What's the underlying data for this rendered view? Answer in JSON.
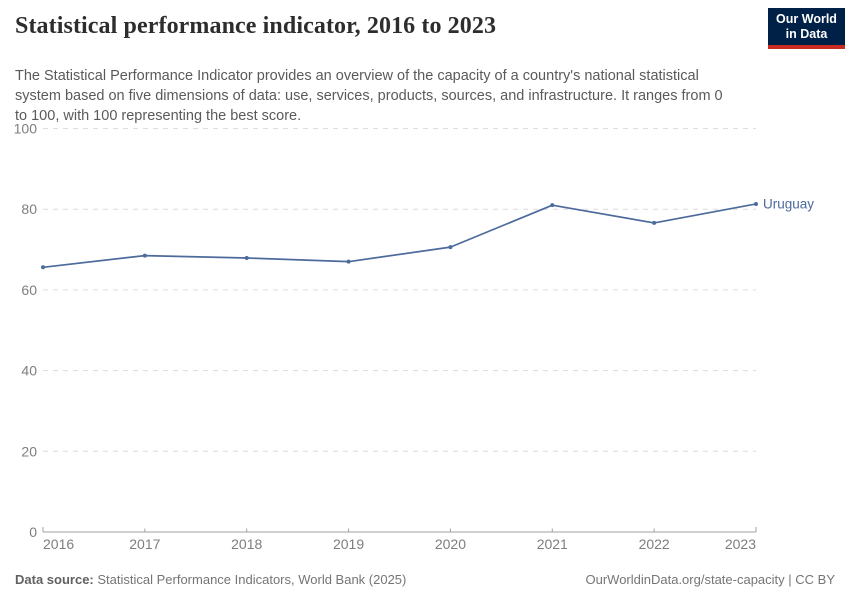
{
  "header": {
    "title": "Statistical performance indicator, 2016 to 2023",
    "subtitle": "The Statistical Performance Indicator provides an overview of the capacity of a country's national statistical system based on five dimensions of data: use, services, products, sources, and infrastructure. It ranges from 0 to 100, with 100 representing the best score.",
    "logo": {
      "line1": "Our World",
      "line2": "in Data",
      "bg_color": "#002147",
      "stripe_color": "#c92a22"
    }
  },
  "chart_data": {
    "type": "line",
    "title": "Statistical performance indicator, 2016 to 2023",
    "x": [
      2016,
      2017,
      2018,
      2019,
      2020,
      2021,
      2022,
      2023
    ],
    "series": [
      {
        "name": "Uruguay",
        "color": "#4c6a9c",
        "values": [
          65.6,
          68.5,
          67.9,
          67.0,
          70.6,
          81.0,
          76.6,
          81.3
        ]
      }
    ],
    "xlabel": "",
    "ylabel": "",
    "ylim": [
      0,
      100
    ],
    "yticks": [
      0,
      20,
      40,
      60,
      80,
      100
    ],
    "grid": "horizontal-dashed",
    "legend": "end-of-line-label",
    "grid_color": "#dcdcdc",
    "axis_color": "#a2a2a2"
  },
  "footer": {
    "datasource_label": "Data source:",
    "datasource_text": " Statistical Performance Indicators, World Bank (2025)",
    "credit": "OurWorldinData.org/state-capacity | CC BY"
  }
}
